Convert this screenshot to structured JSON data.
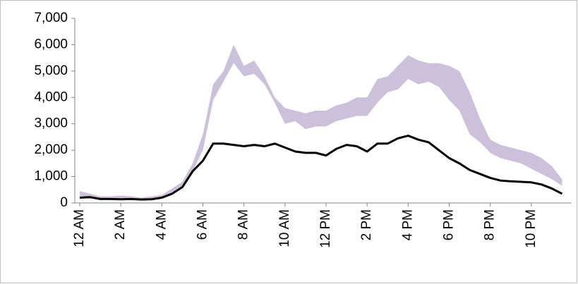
{
  "chart_data": {
    "type": "line",
    "categories": [
      "12 AM",
      null,
      null,
      null,
      "2 AM",
      null,
      null,
      null,
      "4 AM",
      null,
      null,
      null,
      "6 AM",
      null,
      null,
      null,
      "8 AM",
      null,
      null,
      null,
      "10 AM",
      null,
      null,
      null,
      "12 PM",
      null,
      null,
      null,
      "2 PM",
      null,
      null,
      null,
      "4 PM",
      null,
      null,
      null,
      "6 PM",
      null,
      null,
      null,
      "8 PM",
      null,
      null,
      null,
      "10 PM",
      null,
      null,
      null
    ],
    "band": {
      "color": "#ccc0da",
      "upper": [
        450,
        350,
        250,
        250,
        280,
        250,
        200,
        250,
        300,
        550,
        800,
        1500,
        2600,
        4500,
        5000,
        6000,
        5200,
        5400,
        4800,
        4000,
        3600,
        3500,
        3400,
        3500,
        3500,
        3700,
        3800,
        4000,
        4000,
        4700,
        4800,
        5200,
        5600,
        5400,
        5300,
        5300,
        5200,
        5000,
        4200,
        3200,
        2400,
        2200,
        2100,
        2000,
        1900,
        1700,
        1400,
        900
      ],
      "lower": [
        250,
        220,
        150,
        150,
        160,
        150,
        130,
        140,
        200,
        350,
        650,
        1200,
        2000,
        3900,
        4600,
        5300,
        4800,
        4900,
        4500,
        3800,
        3000,
        3100,
        2800,
        2900,
        2900,
        3100,
        3200,
        3300,
        3300,
        3800,
        4200,
        4300,
        4700,
        4500,
        4600,
        4400,
        3900,
        3500,
        2600,
        2300,
        1900,
        1700,
        1600,
        1500,
        1300,
        1100,
        900,
        650
      ]
    },
    "series": [
      {
        "color": "#000000",
        "values": [
          200,
          220,
          150,
          150,
          140,
          150,
          130,
          140,
          200,
          350,
          600,
          1200,
          1600,
          2250,
          2250,
          2200,
          2150,
          2200,
          2150,
          2250,
          2100,
          1950,
          1900,
          1900,
          1800,
          2050,
          2200,
          2150,
          1950,
          2250,
          2250,
          2450,
          2550,
          2400,
          2300,
          2000,
          1700,
          1500,
          1250,
          1100,
          950,
          850,
          820,
          800,
          780,
          700,
          550,
          350
        ]
      }
    ],
    "ylim": [
      0,
      7000
    ],
    "yticks": [
      0,
      {
        "value": 1000,
        "label": "1,000"
      },
      {
        "value": 2000,
        "label": "2,000"
      },
      {
        "value": 3000,
        "label": "3,000"
      },
      {
        "value": 4000,
        "label": "4,000"
      },
      {
        "value": 5000,
        "label": "5,000"
      },
      {
        "value": 6000,
        "label": "6,000"
      },
      {
        "value": 7000,
        "label": "7,000"
      }
    ],
    "grid": false
  }
}
